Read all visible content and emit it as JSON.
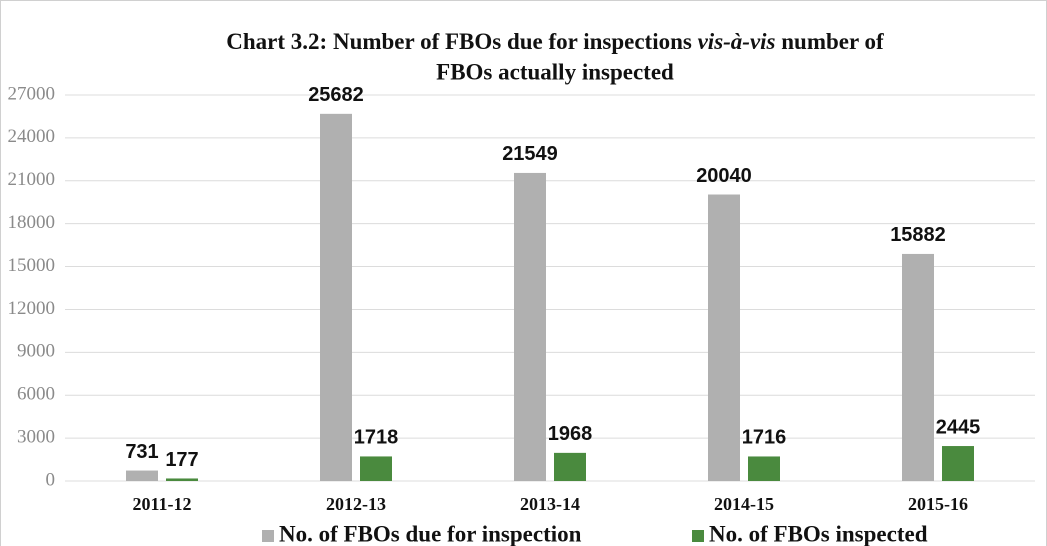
{
  "chart_data": {
    "type": "bar",
    "title": [
      "Chart 3.2: Number of FBOs due for inspections",
      "vis-à-vis",
      "number of",
      "FBOs actually inspected"
    ],
    "categories": [
      "2011-12",
      "2012-13",
      "2013-14",
      "2014-15",
      "2015-16"
    ],
    "series": [
      {
        "name": "No. of FBOs due for inspection",
        "color": "#b0b0b0",
        "values": [
          731,
          25682,
          21549,
          20040,
          15882
        ]
      },
      {
        "name": "No. of FBOs inspected",
        "color": "#4a8a3e",
        "values": [
          177,
          1718,
          1968,
          1716,
          2445
        ]
      }
    ],
    "ylim": [
      0,
      27000
    ],
    "yticks": [
      0,
      3000,
      6000,
      9000,
      12000,
      15000,
      18000,
      21000,
      24000,
      27000
    ],
    "grid": true,
    "legend": "bottom"
  }
}
